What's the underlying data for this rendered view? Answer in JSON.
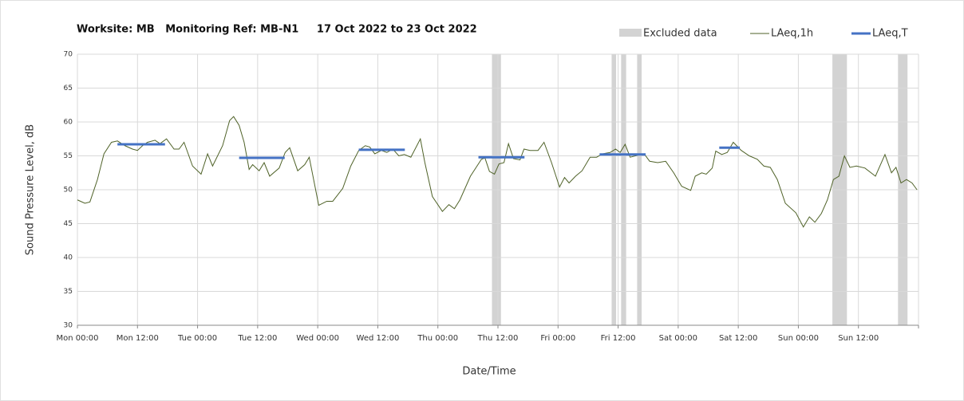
{
  "chart_data": {
    "type": "line",
    "title": "Worksite: MB   Monitoring Ref: MB-N1     17 Oct 2022 to 23 Oct 2022",
    "xlabel": "Date/Time",
    "ylabel": "Sound Pressure Level, dB",
    "xlim": [
      0,
      168
    ],
    "ylim": [
      30,
      70
    ],
    "xticks": [
      {
        "value": 0,
        "label": "Mon 00:00"
      },
      {
        "value": 12,
        "label": "Mon 12:00"
      },
      {
        "value": 24,
        "label": "Tue 00:00"
      },
      {
        "value": 36,
        "label": "Tue 12:00"
      },
      {
        "value": 48,
        "label": "Wed 00:00"
      },
      {
        "value": 60,
        "label": "Wed 12:00"
      },
      {
        "value": 72,
        "label": "Thu 00:00"
      },
      {
        "value": 84,
        "label": "Thu 12:00"
      },
      {
        "value": 96,
        "label": "Fri 00:00"
      },
      {
        "value": 108,
        "label": "Fri 12:00"
      },
      {
        "value": 120,
        "label": "Sat 00:00"
      },
      {
        "value": 132,
        "label": "Sat 12:00"
      },
      {
        "value": 144,
        "label": "Sun 00:00"
      },
      {
        "value": 156,
        "label": "Sun 12:00"
      },
      168
    ],
    "yticks": [
      30,
      35,
      40,
      45,
      50,
      55,
      60,
      65,
      70
    ],
    "grid": true,
    "excluded": {
      "name": "Excluded data",
      "color": "#d3d3d3",
      "bands": [
        {
          "start": 82.8,
          "end": 84.6
        },
        {
          "start": 106.7,
          "end": 107.6
        },
        {
          "start": 108.6,
          "end": 109.6
        },
        {
          "start": 111.8,
          "end": 112.7
        },
        {
          "start": 150.8,
          "end": 153.7
        },
        {
          "start": 163.9,
          "end": 165.8
        }
      ]
    },
    "series": [
      {
        "name": "LAeq,1h",
        "color": "#4f6228",
        "x": [
          0,
          1.5,
          2.5,
          4,
          5.3,
          6.8,
          8,
          9.5,
          11,
          12,
          13,
          14,
          15.5,
          16.5,
          17.8,
          19.3,
          20.3,
          21.3,
          23,
          24.7,
          26,
          27,
          29,
          30.4,
          31.2,
          32.3,
          33.3,
          34.3,
          35,
          36.3,
          37.3,
          38.4,
          40.3,
          41.5,
          42.4,
          44,
          45.4,
          46.3,
          48.2,
          49.8,
          51,
          53,
          54.6,
          56.2,
          57.5,
          58.4,
          59.4,
          60.7,
          61.8,
          63,
          64.2,
          65.3,
          66.6,
          68.5,
          69.4,
          70.9,
          72.9,
          74.2,
          75.3,
          76.4,
          78.5,
          80.7,
          81.4,
          82.3,
          83.3,
          84.2,
          85.2,
          86.1,
          87.1,
          88.4,
          89.2,
          90.4,
          92,
          93.2,
          94.7,
          96.3,
          97.3,
          98.2,
          99.5,
          100.8,
          102.4,
          103.7,
          104.9,
          106.4,
          107.5,
          108.4,
          109.4,
          110.4,
          112,
          113.2,
          114.3,
          115.9,
          117.5,
          119.1,
          120.7,
          122.5,
          123.4,
          124.7,
          125.6,
          126.8,
          127.5,
          128.7,
          129.8,
          131,
          132.6,
          134.2,
          135.8,
          137.1,
          138.4,
          139.8,
          141.4,
          143.5,
          145,
          146.2,
          147.3,
          148.6,
          149.8,
          151,
          152.1,
          153.2,
          154.3,
          155.6,
          157.3,
          159.4,
          161.3,
          162.6,
          163.5,
          164.5,
          165.6,
          166.7,
          167.7
        ],
        "values": [
          48.5,
          48,
          48.2,
          51.5,
          55.3,
          57,
          57.2,
          56.5,
          56,
          55.8,
          56.5,
          57,
          57.3,
          56.8,
          57.5,
          56,
          56,
          57,
          53.5,
          52.3,
          55.3,
          53.5,
          56.5,
          60.2,
          60.8,
          59.5,
          57,
          53,
          53.7,
          52.8,
          54,
          52,
          53.2,
          55.5,
          56.2,
          52.8,
          53.7,
          54.8,
          47.7,
          48.3,
          48.3,
          50.2,
          53.5,
          55.8,
          56.5,
          56.3,
          55.3,
          55.8,
          55.5,
          56,
          55,
          55.2,
          54.8,
          57.5,
          54,
          49,
          46.8,
          47.8,
          47.2,
          48.5,
          52,
          54.5,
          54.7,
          52.7,
          52.3,
          53.8,
          54,
          56.8,
          54.6,
          54.4,
          56,
          55.8,
          55.8,
          57,
          54,
          50.4,
          51.8,
          51,
          52,
          52.8,
          54.8,
          54.8,
          55.3,
          55.5,
          56,
          55.5,
          56.7,
          54.8,
          55.1,
          55.3,
          54.2,
          54,
          54.2,
          52.5,
          50.5,
          49.9,
          52,
          52.5,
          52.3,
          53.2,
          55.7,
          55.2,
          55.5,
          57,
          55.8,
          55,
          54.5,
          53.5,
          53.3,
          51.5,
          48,
          46.6,
          44.5,
          46,
          45.2,
          46.5,
          48.5,
          51.5,
          52,
          55,
          53.3,
          53.5,
          53.2,
          52,
          55.2,
          52.5,
          53.3,
          51,
          51.5,
          51,
          50
        ]
      },
      {
        "name": "LAeq,T",
        "color": "#4472c4",
        "segments": [
          {
            "start": 8,
            "end": 17.5,
            "value": 56.7
          },
          {
            "start": 32.3,
            "end": 41.4,
            "value": 54.7
          },
          {
            "start": 56.2,
            "end": 65.4,
            "value": 55.9
          },
          {
            "start": 80.1,
            "end": 89.3,
            "value": 54.8
          },
          {
            "start": 104.3,
            "end": 113.5,
            "value": 55.2
          },
          {
            "start": 128.2,
            "end": 132.3,
            "value": 56.2
          }
        ]
      }
    ]
  }
}
